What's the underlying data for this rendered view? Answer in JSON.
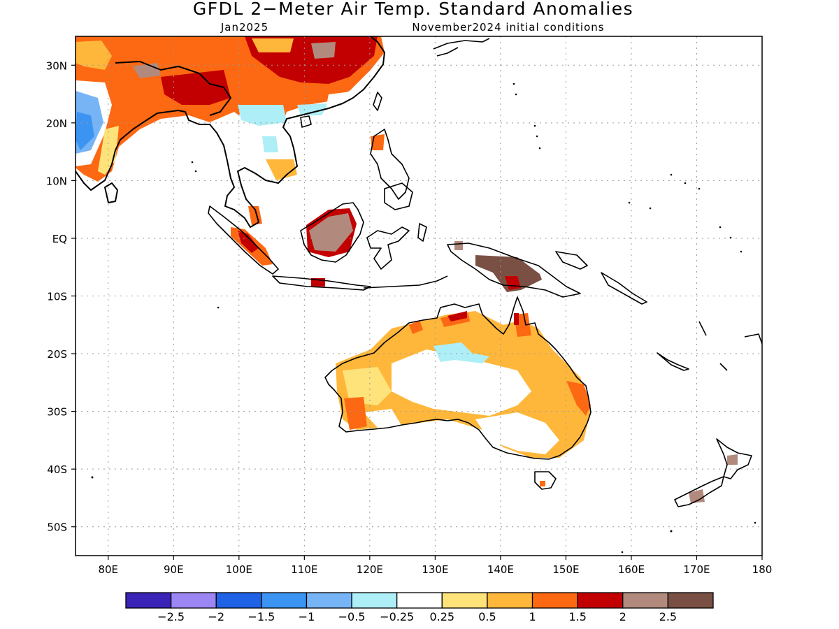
{
  "title": "GFDL 2−Meter Air Temp. Standard Anomalies",
  "subtitle_left": "Jan2025",
  "subtitle_right": "November2024 initial conditions",
  "map": {
    "lon_range": [
      75,
      180
    ],
    "lat_range": [
      -55,
      35
    ],
    "lon_ticks": [
      {
        "value": 80,
        "label": "80E"
      },
      {
        "value": 90,
        "label": "90E"
      },
      {
        "value": 100,
        "label": "100E"
      },
      {
        "value": 110,
        "label": "110E"
      },
      {
        "value": 120,
        "label": "120E"
      },
      {
        "value": 130,
        "label": "130E"
      },
      {
        "value": 140,
        "label": "140E"
      },
      {
        "value": 150,
        "label": "150E"
      },
      {
        "value": 160,
        "label": "160E"
      },
      {
        "value": 170,
        "label": "170E"
      },
      {
        "value": 180,
        "label": "180"
      }
    ],
    "lat_ticks": [
      {
        "value": 30,
        "label": "30N"
      },
      {
        "value": 20,
        "label": "20N"
      },
      {
        "value": 10,
        "label": "10N"
      },
      {
        "value": 0,
        "label": "EQ"
      },
      {
        "value": -10,
        "label": "10S"
      },
      {
        "value": -20,
        "label": "20S"
      },
      {
        "value": -30,
        "label": "30S"
      },
      {
        "value": -40,
        "label": "40S"
      },
      {
        "value": -50,
        "label": "50S"
      }
    ],
    "grid": true
  },
  "colorbar": {
    "colors": [
      "#3a24b8",
      "#9c86f3",
      "#1f62e6",
      "#3c94f2",
      "#76b4f5",
      "#aeeef6",
      "#ffffff",
      "#fee27a",
      "#feb73a",
      "#fd6812",
      "#c30001",
      "#b28a7d",
      "#7a5044"
    ],
    "labels": [
      "−2.5",
      "−2",
      "−1.5",
      "−1",
      "−0.5",
      "−0.25",
      "0.25",
      "0.5",
      "1",
      "1.5",
      "2",
      "2.5"
    ]
  }
}
